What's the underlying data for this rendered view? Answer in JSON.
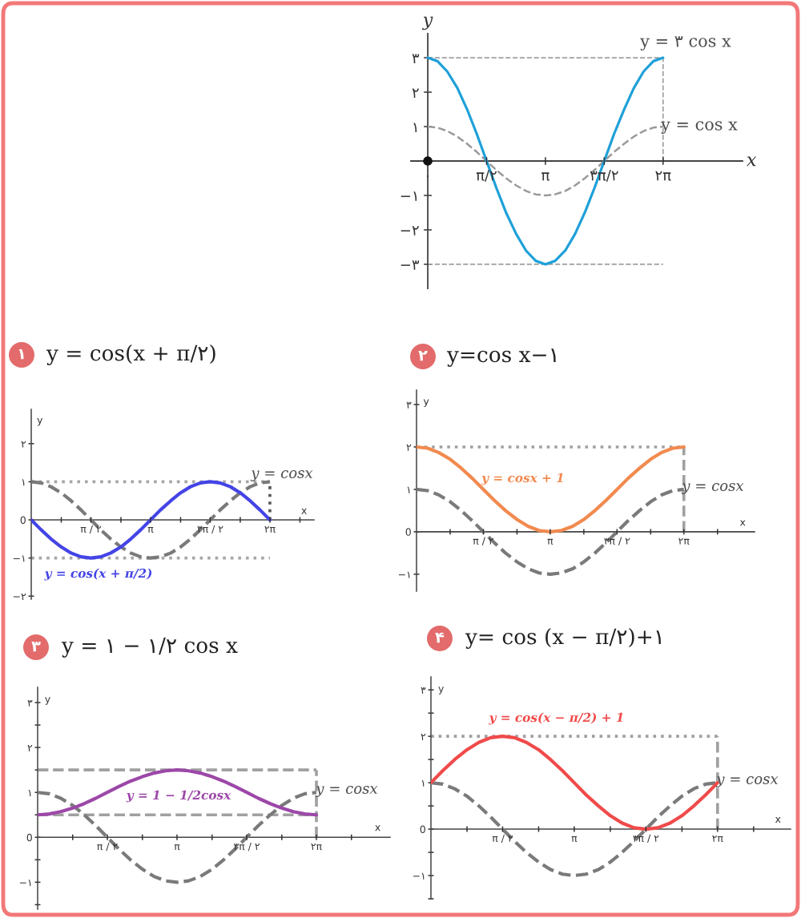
{
  "chart_data": [
    {
      "type": "line",
      "xlabel": "x",
      "ylabel": "y",
      "x": [
        0,
        0.26,
        0.52,
        0.79,
        1.05,
        1.31,
        1.57,
        1.83,
        2.09,
        2.36,
        2.62,
        2.88,
        3.14,
        3.4,
        3.67,
        3.93,
        4.19,
        4.45,
        4.71,
        4.97,
        5.24,
        5.5,
        5.76,
        6.02,
        6.28
      ],
      "series": [
        {
          "name": "y = cos x",
          "color": "#9a9a9a",
          "line_style": "dashed",
          "values": [
            1,
            0.97,
            0.87,
            0.71,
            0.5,
            0.26,
            0,
            -0.26,
            -0.5,
            -0.71,
            -0.87,
            -0.97,
            -1,
            -0.97,
            -0.87,
            -0.71,
            -0.5,
            -0.26,
            0,
            0.26,
            0.5,
            0.71,
            0.87,
            0.97,
            1
          ]
        },
        {
          "name": "y = ۳ cos x",
          "color": "#1ea0d8",
          "line_style": "solid",
          "values": [
            3,
            2.9,
            2.6,
            2.12,
            1.5,
            0.78,
            0,
            -0.78,
            -1.5,
            -2.12,
            -2.6,
            -2.9,
            -3,
            -2.9,
            -2.6,
            -2.12,
            -1.5,
            -0.78,
            0,
            0.78,
            1.5,
            2.12,
            2.6,
            2.9,
            3
          ]
        },
        {
          "type": "scatter",
          "x": [
            0
          ],
          "values": [
            0
          ],
          "color": "#111111",
          "marker": "circle"
        }
      ],
      "xlim": [
        -0.45,
        8.4
      ],
      "ylim": [
        -3.7,
        3.7
      ],
      "xticks": [
        {
          "value": 0,
          "label": "۰"
        },
        {
          "value": 1.57,
          "label": "π/۲"
        },
        {
          "value": 3.14,
          "label": "π"
        },
        {
          "value": 4.71,
          "label": "۳π/۲"
        },
        {
          "value": 6.28,
          "label": "۲π"
        }
      ],
      "yticks": [
        {
          "value": -3,
          "label": "−۳"
        },
        {
          "value": -2,
          "label": "−۲"
        },
        {
          "value": -1,
          "label": "−۱"
        },
        {
          "value": 1,
          "label": "۱"
        },
        {
          "value": 2,
          "label": "۲"
        },
        {
          "value": 3,
          "label": "۳"
        }
      ],
      "ref_lines": [
        {
          "axis": "y",
          "value": 3,
          "color": "#a0a0a0",
          "line_style": "dashed"
        },
        {
          "axis": "y",
          "value": -3,
          "color": "#a0a0a0",
          "line_style": "dashed"
        },
        {
          "axis": "x",
          "value": 6.28,
          "color": "#a0a0a0",
          "line_style": "dashed"
        }
      ]
    },
    {
      "type": "line",
      "title": "y = cos(x + π/۲)",
      "xlabel": "x",
      "ylabel": "y",
      "x": [
        0,
        0.26,
        0.52,
        0.79,
        1.05,
        1.31,
        1.57,
        1.83,
        2.09,
        2.36,
        2.62,
        2.88,
        3.14,
        3.4,
        3.67,
        3.93,
        4.19,
        4.45,
        4.71,
        4.97,
        5.24,
        5.5,
        5.76,
        6.02,
        6.28
      ],
      "series": [
        {
          "name": "y = cosx",
          "color": "#7a7a7a",
          "line_style": "dashed",
          "values": [
            1,
            0.97,
            0.87,
            0.71,
            0.5,
            0.26,
            0,
            -0.26,
            -0.5,
            -0.71,
            -0.87,
            -0.97,
            -1,
            -0.97,
            -0.87,
            -0.71,
            -0.5,
            -0.26,
            0,
            0.26,
            0.5,
            0.71,
            0.87,
            0.97,
            1
          ]
        },
        {
          "name": "y = cos(x + π/2)",
          "color": "#4444e6",
          "line_style": "solid",
          "values": [
            0,
            -0.26,
            -0.5,
            -0.71,
            -0.87,
            -0.97,
            -1,
            -0.97,
            -0.87,
            -0.71,
            -0.5,
            -0.26,
            0,
            0.26,
            0.5,
            0.71,
            0.87,
            0.97,
            1,
            0.97,
            0.87,
            0.71,
            0.5,
            0.26,
            0
          ]
        }
      ],
      "xlim": [
        0,
        7.44
      ],
      "ylim": [
        -2.08,
        2.9
      ],
      "xticks": [
        {
          "value": 0.79,
          "label": null
        },
        {
          "value": 1.57,
          "label": "π / ۲"
        },
        {
          "value": 2.36,
          "label": null
        },
        {
          "value": 3.14,
          "label": "π"
        },
        {
          "value": 3.93,
          "label": null
        },
        {
          "value": 4.71,
          "label": "۳π / ۲"
        },
        {
          "value": 5.5,
          "label": null
        },
        {
          "value": 6.28,
          "label": "۲π"
        },
        {
          "value": 7.07,
          "label": null
        }
      ],
      "yticks": [
        {
          "value": -2,
          "label": "−۲"
        },
        {
          "value": -1,
          "label": "−۱"
        },
        0,
        {
          "value": 1,
          "label": "۱"
        },
        {
          "value": 2,
          "label": "۲"
        }
      ],
      "ref_lines": [
        {
          "axis": "y",
          "value": 1,
          "color": "#a6a6a6",
          "line_style": "dotted"
        },
        {
          "axis": "y",
          "value": -1,
          "color": "#a6a6a6",
          "line_style": "dotted"
        },
        {
          "axis": "x",
          "value": 6.28,
          "color": "#555555",
          "line_style": "dotted"
        }
      ],
      "annotations": [
        "۱"
      ]
    },
    {
      "type": "line",
      "title": "y=cos x−۱",
      "xlabel": "x",
      "ylabel": "y",
      "x": [
        0,
        0.26,
        0.52,
        0.79,
        1.05,
        1.31,
        1.57,
        1.83,
        2.09,
        2.36,
        2.62,
        2.88,
        3.14,
        3.4,
        3.67,
        3.93,
        4.19,
        4.45,
        4.71,
        4.97,
        5.24,
        5.5,
        5.76,
        6.02,
        6.28
      ],
      "series": [
        {
          "name": "y = cosx",
          "color": "#7a7a7a",
          "line_style": "dashed",
          "values": [
            1,
            0.97,
            0.87,
            0.71,
            0.5,
            0.26,
            0,
            -0.26,
            -0.5,
            -0.71,
            -0.87,
            -0.97,
            -1,
            -0.97,
            -0.87,
            -0.71,
            -0.5,
            -0.26,
            0,
            0.26,
            0.5,
            0.71,
            0.87,
            0.97,
            1
          ]
        },
        {
          "name": "y = cosx + 1",
          "color": "#f28a4f",
          "line_style": "solid",
          "values": [
            2,
            1.97,
            1.87,
            1.71,
            1.5,
            1.26,
            1,
            0.74,
            0.5,
            0.29,
            0.13,
            0.03,
            0,
            0.03,
            0.13,
            0.29,
            0.5,
            0.74,
            1,
            1.26,
            1.5,
            1.71,
            1.87,
            1.97,
            2
          ]
        }
      ],
      "xlim": [
        0,
        7.94
      ],
      "ylim": [
        -1.4,
        3.34
      ],
      "xticks": [
        {
          "value": 0.79,
          "label": null
        },
        {
          "value": 1.57,
          "label": "π / ۲"
        },
        {
          "value": 2.36,
          "label": null
        },
        {
          "value": 3.14,
          "label": "π"
        },
        {
          "value": 3.93,
          "label": null
        },
        {
          "value": 4.71,
          "label": "۳π / ۲"
        },
        {
          "value": 5.5,
          "label": null
        },
        {
          "value": 6.28,
          "label": "۲π"
        },
        {
          "value": 7.07,
          "label": null
        }
      ],
      "yticks": [
        {
          "value": -1,
          "label": "−۱"
        },
        0,
        {
          "value": 1,
          "label": "۱"
        },
        {
          "value": 2,
          "label": "۲"
        },
        {
          "value": 3,
          "label": "۳"
        }
      ],
      "ref_lines": [
        {
          "axis": "y",
          "value": 2,
          "color": "#a0a0a0",
          "line_style": "dotted"
        },
        {
          "axis": "x",
          "value": 6.28,
          "color": "#a0a0a0",
          "line_style": "dashed"
        }
      ],
      "annotations": [
        "۲"
      ]
    },
    {
      "type": "line",
      "title": "y = ۱ − ۱/۲ cos x",
      "xlabel": "x",
      "ylabel": "y",
      "x": [
        0,
        0.26,
        0.52,
        0.79,
        1.05,
        1.31,
        1.57,
        1.83,
        2.09,
        2.36,
        2.62,
        2.88,
        3.14,
        3.4,
        3.67,
        3.93,
        4.19,
        4.45,
        4.71,
        4.97,
        5.24,
        5.5,
        5.76,
        6.02,
        6.28
      ],
      "series": [
        {
          "name": "y = cosx",
          "color": "#7a7a7a",
          "line_style": "dashed",
          "values": [
            1,
            0.97,
            0.87,
            0.71,
            0.5,
            0.26,
            0,
            -0.26,
            -0.5,
            -0.71,
            -0.87,
            -0.97,
            -1,
            -0.97,
            -0.87,
            -0.71,
            -0.5,
            -0.26,
            0,
            0.26,
            0.5,
            0.71,
            0.87,
            0.97,
            1
          ]
        },
        {
          "name": "y = 1 − 1/2cosx",
          "color": "#9c48a8",
          "line_style": "solid",
          "values": [
            0.5,
            0.52,
            0.57,
            0.65,
            0.75,
            0.87,
            1,
            1.13,
            1.25,
            1.35,
            1.43,
            1.48,
            1.5,
            1.48,
            1.43,
            1.35,
            1.25,
            1.13,
            1,
            0.87,
            0.75,
            0.65,
            0.57,
            0.52,
            0.5
          ]
        }
      ],
      "xlim": [
        0,
        7.94
      ],
      "ylim": [
        -1.6,
        3.34
      ],
      "xticks": [
        {
          "value": 0.79,
          "label": null
        },
        {
          "value": 1.57,
          "label": "π / ۲"
        },
        {
          "value": 2.36,
          "label": null
        },
        {
          "value": 3.14,
          "label": "π"
        },
        {
          "value": 3.93,
          "label": null
        },
        {
          "value": 4.71,
          "label": "۳π / ۲"
        },
        {
          "value": 5.5,
          "label": null
        },
        {
          "value": 6.28,
          "label": "۲π"
        },
        {
          "value": 7.07,
          "label": null
        }
      ],
      "yticks": [
        {
          "value": -1.5,
          "label": null
        },
        {
          "value": -1,
          "label": "−۱"
        },
        {
          "value": -0.5,
          "label": null
        },
        0,
        {
          "value": 0.5,
          "label": null
        },
        {
          "value": 1,
          "label": "۱"
        },
        {
          "value": 1.5,
          "label": null
        },
        {
          "value": 2,
          "label": "۲"
        },
        {
          "value": 2.5,
          "label": null
        },
        {
          "value": 3,
          "label": "۳"
        }
      ],
      "ref_lines": [
        {
          "axis": "y",
          "value": 1.5,
          "color": "#a0a0a0",
          "line_style": "dashed"
        },
        {
          "axis": "y",
          "value": 0.5,
          "color": "#a0a0a0",
          "line_style": "dashed"
        },
        {
          "axis": "x",
          "value": 6.28,
          "color": "#a0a0a0",
          "line_style": "dashed"
        }
      ],
      "annotations": [
        "۳"
      ]
    },
    {
      "type": "line",
      "title": "y= cos (x − π/۲)+۱",
      "xlabel": "x",
      "ylabel": "y",
      "x": [
        0,
        0.26,
        0.52,
        0.79,
        1.05,
        1.31,
        1.57,
        1.83,
        2.09,
        2.36,
        2.62,
        2.88,
        3.14,
        3.4,
        3.67,
        3.93,
        4.19,
        4.45,
        4.71,
        4.97,
        5.24,
        5.5,
        5.76,
        6.02,
        6.28
      ],
      "series": [
        {
          "name": "y = cosx",
          "color": "#7a7a7a",
          "line_style": "dashed",
          "values": [
            1,
            0.97,
            0.87,
            0.71,
            0.5,
            0.26,
            0,
            -0.26,
            -0.5,
            -0.71,
            -0.87,
            -0.97,
            -1,
            -0.97,
            -0.87,
            -0.71,
            -0.5,
            -0.26,
            0,
            0.26,
            0.5,
            0.71,
            0.87,
            0.97,
            1
          ]
        },
        {
          "name": "y = cos(x − π/2) + 1",
          "color": "#f04a4a",
          "line_style": "solid",
          "values": [
            1,
            1.26,
            1.5,
            1.71,
            1.87,
            1.97,
            2,
            1.97,
            1.87,
            1.71,
            1.5,
            1.26,
            1,
            0.74,
            0.5,
            0.29,
            0.13,
            0.03,
            0,
            0.03,
            0.13,
            0.29,
            0.5,
            0.74,
            1
          ]
        }
      ],
      "xlim": [
        0,
        7.88
      ],
      "ylim": [
        -1.5,
        3.28
      ],
      "xticks": [
        {
          "value": 0.79,
          "label": null
        },
        {
          "value": 1.57,
          "label": "π / ۲"
        },
        {
          "value": 2.36,
          "label": null
        },
        {
          "value": 3.14,
          "label": "π"
        },
        {
          "value": 3.93,
          "label": null
        },
        {
          "value": 4.71,
          "label": "۳π / ۲"
        },
        {
          "value": 5.5,
          "label": null
        },
        {
          "value": 6.28,
          "label": "۲π"
        },
        {
          "value": 7.07,
          "label": null
        }
      ],
      "yticks": [
        {
          "value": -1.5,
          "label": null
        },
        {
          "value": -1,
          "label": "−۱"
        },
        {
          "value": -0.5,
          "label": null
        },
        0,
        {
          "value": 0.5,
          "label": null
        },
        {
          "value": 1,
          "label": "۱"
        },
        {
          "value": 1.5,
          "label": null
        },
        {
          "value": 2,
          "label": "۲"
        },
        {
          "value": 2.5,
          "label": null
        },
        {
          "value": 3,
          "label": "۳"
        }
      ],
      "ref_lines": [
        {
          "axis": "y",
          "value": 2,
          "color": "#a0a0a0",
          "line_style": "dotted"
        },
        {
          "axis": "x",
          "value": 6.28,
          "color": "#a0a0a0",
          "line_style": "dashed"
        }
      ],
      "annotations": [
        "۴"
      ]
    }
  ]
}
